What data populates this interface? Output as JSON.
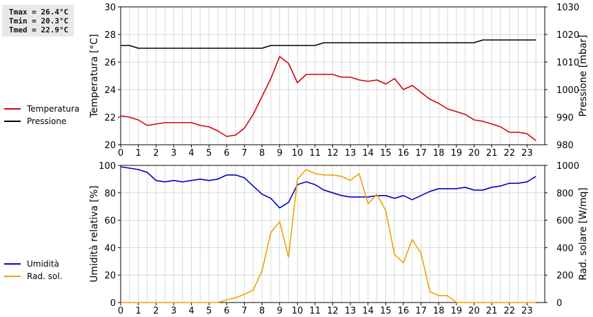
{
  "stats": {
    "tmax": "Tmax = 26.4°C",
    "tmin": "Tmin = 20.3°C",
    "tmed": "Tmed = 22.9°C"
  },
  "chart_data": [
    {
      "type": "line",
      "xlim": [
        0,
        24
      ],
      "x_ticks": [
        0,
        1,
        2,
        3,
        4,
        5,
        6,
        7,
        8,
        9,
        10,
        11,
        12,
        13,
        14,
        15,
        16,
        17,
        18,
        19,
        20,
        21,
        22,
        23
      ],
      "ylabel_left": "Temperatura [°C]",
      "ylabel_right": "Pressione [mbar]",
      "ylim_left": [
        20,
        30
      ],
      "ylim_right": [
        980,
        1030
      ],
      "y_ticks_left": [
        20,
        22,
        24,
        26,
        28,
        30
      ],
      "y_ticks_right": [
        980,
        990,
        1000,
        1010,
        1020,
        1030
      ],
      "grid": true,
      "legend_position": "left",
      "series": [
        {
          "name": "Temperatura",
          "axis": "left",
          "color": "#d40000",
          "x": [
            0,
            0.5,
            1,
            1.5,
            2,
            2.5,
            3,
            3.5,
            4,
            4.5,
            5,
            5.5,
            6,
            6.5,
            7,
            7.5,
            8,
            8.5,
            9,
            9.5,
            10,
            10.5,
            11,
            11.5,
            12,
            12.5,
            13,
            13.5,
            14,
            14.5,
            15,
            15.5,
            16,
            16.5,
            17,
            17.5,
            18,
            18.5,
            19,
            19.5,
            20,
            20.5,
            21,
            21.5,
            22,
            22.5,
            23,
            23.5
          ],
          "values": [
            22.1,
            22.0,
            21.8,
            21.4,
            21.5,
            21.6,
            21.6,
            21.6,
            21.6,
            21.4,
            21.3,
            21.0,
            20.6,
            20.7,
            21.2,
            22.2,
            23.5,
            24.8,
            26.4,
            25.9,
            24.5,
            25.1,
            25.1,
            25.1,
            25.1,
            24.9,
            24.9,
            24.7,
            24.6,
            24.7,
            24.4,
            24.8,
            24.0,
            24.3,
            23.8,
            23.3,
            23.0,
            22.6,
            22.4,
            22.2,
            21.8,
            21.7,
            21.5,
            21.3,
            20.9,
            20.9,
            20.8,
            20.3
          ]
        },
        {
          "name": "Pressione",
          "axis": "right",
          "color": "#000000",
          "x": [
            0,
            0.5,
            1,
            1.5,
            2,
            2.5,
            3,
            3.5,
            4,
            4.5,
            5,
            5.5,
            6,
            6.5,
            7,
            7.5,
            8,
            8.5,
            9,
            9.5,
            10,
            10.5,
            11,
            11.5,
            12,
            12.5,
            13,
            13.5,
            14,
            14.5,
            15,
            15.5,
            16,
            16.5,
            17,
            17.5,
            18,
            18.5,
            19,
            19.5,
            20,
            20.5,
            21,
            21.5,
            22,
            22.5,
            23,
            23.5
          ],
          "values": [
            1016,
            1016,
            1015,
            1015,
            1015,
            1015,
            1015,
            1015,
            1015,
            1015,
            1015,
            1015,
            1015,
            1015,
            1015,
            1015,
            1015,
            1016,
            1016,
            1016,
            1016,
            1016,
            1016,
            1017,
            1017,
            1017,
            1017,
            1017,
            1017,
            1017,
            1017,
            1017,
            1017,
            1017,
            1017,
            1017,
            1017,
            1017,
            1017,
            1017,
            1017,
            1018,
            1018,
            1018,
            1018,
            1018,
            1018,
            1018
          ]
        }
      ]
    },
    {
      "type": "line",
      "xlim": [
        0,
        24
      ],
      "x_ticks": [
        0,
        1,
        2,
        3,
        4,
        5,
        6,
        7,
        8,
        9,
        10,
        11,
        12,
        13,
        14,
        15,
        16,
        17,
        18,
        19,
        20,
        21,
        22,
        23
      ],
      "ylabel_left": "Umidità relativa [%]",
      "ylabel_right": "Rad. solare [W/mq]",
      "ylim_left": [
        0,
        100
      ],
      "ylim_right": [
        0,
        1000
      ],
      "y_ticks_left": [
        0,
        20,
        40,
        60,
        80,
        100
      ],
      "y_ticks_right": [
        0,
        200,
        400,
        600,
        800,
        1000
      ],
      "grid": true,
      "legend_position": "left",
      "series": [
        {
          "name": "Umidità",
          "axis": "left",
          "color": "#0000c8",
          "x": [
            0,
            0.5,
            1,
            1.5,
            2,
            2.5,
            3,
            3.5,
            4,
            4.5,
            5,
            5.5,
            6,
            6.5,
            7,
            7.5,
            8,
            8.5,
            9,
            9.5,
            10,
            10.5,
            11,
            11.5,
            12,
            12.5,
            13,
            13.5,
            14,
            14.5,
            15,
            15.5,
            16,
            16.5,
            17,
            17.5,
            18,
            18.5,
            19,
            19.5,
            20,
            20.5,
            21,
            21.5,
            22,
            22.5,
            23,
            23.5
          ],
          "values": [
            99,
            98,
            97,
            95,
            89,
            88,
            89,
            88,
            89,
            90,
            89,
            90,
            93,
            93,
            91,
            85,
            79,
            76,
            69,
            73,
            86,
            88,
            86,
            82,
            80,
            78,
            77,
            77,
            77,
            78,
            78,
            76,
            78,
            75,
            78,
            81,
            83,
            83,
            83,
            84,
            82,
            82,
            84,
            85,
            87,
            87,
            88,
            92
          ]
        },
        {
          "name": "Rad. sol.",
          "axis": "right",
          "color": "#f0a000",
          "x": [
            0,
            0.5,
            1,
            1.5,
            2,
            2.5,
            3,
            3.5,
            4,
            4.5,
            5,
            5.5,
            6,
            6.5,
            7,
            7.5,
            8,
            8.5,
            9,
            9.5,
            10,
            10.5,
            11,
            11.5,
            12,
            12.5,
            13,
            13.5,
            14,
            14.5,
            15,
            15.5,
            16,
            16.5,
            17,
            17.5,
            18,
            18.5,
            19,
            19.5,
            20,
            20.5,
            21,
            21.5,
            22,
            22.5,
            23,
            23.5
          ],
          "values": [
            0,
            0,
            0,
            0,
            0,
            0,
            0,
            0,
            0,
            0,
            0,
            0,
            20,
            35,
            60,
            90,
            230,
            510,
            590,
            330,
            900,
            970,
            940,
            930,
            930,
            920,
            890,
            940,
            720,
            790,
            670,
            350,
            290,
            460,
            360,
            80,
            50,
            50,
            0,
            0,
            0,
            0,
            0,
            0,
            0,
            0,
            0,
            0
          ]
        }
      ]
    }
  ]
}
